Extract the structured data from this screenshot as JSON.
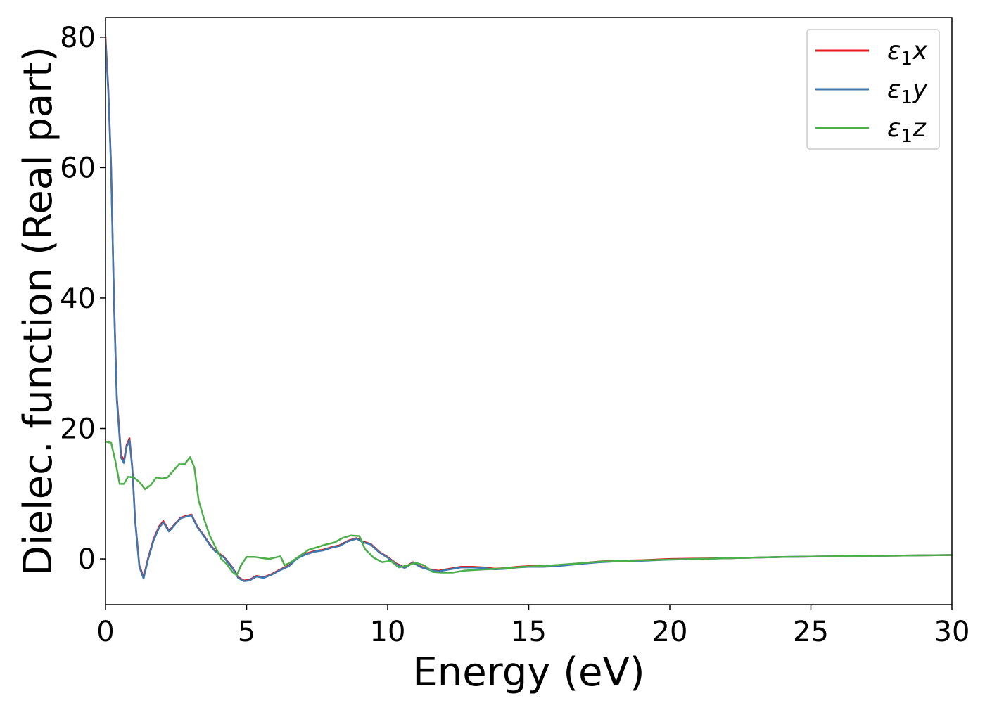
{
  "chart_data": {
    "type": "line",
    "title": "",
    "xlabel": "Energy (eV)",
    "ylabel": "Dielec. function (Real part)",
    "xlim": [
      0,
      30
    ],
    "ylim": [
      -7,
      83
    ],
    "xticks": [
      0,
      5,
      10,
      15,
      20,
      25,
      30
    ],
    "yticks": [
      0,
      20,
      40,
      60,
      80
    ],
    "grid": false,
    "legend_position": "top-right",
    "series": [
      {
        "name": "ε₁x",
        "legend_main": "ε",
        "legend_sub": "1",
        "legend_suffix": "x",
        "color": "#e41a1c",
        "points": [
          [
            0,
            80
          ],
          [
            0.1,
            72
          ],
          [
            0.2,
            60
          ],
          [
            0.3,
            40
          ],
          [
            0.4,
            25
          ],
          [
            0.55,
            16
          ],
          [
            0.65,
            15
          ],
          [
            0.75,
            17.5
          ],
          [
            0.85,
            18.5
          ],
          [
            0.95,
            14
          ],
          [
            1.05,
            6
          ],
          [
            1.2,
            -1
          ],
          [
            1.35,
            -2.8
          ],
          [
            1.5,
            0
          ],
          [
            1.7,
            3
          ],
          [
            1.9,
            5
          ],
          [
            2.05,
            5.8
          ],
          [
            2.25,
            4.3
          ],
          [
            2.45,
            5.3
          ],
          [
            2.65,
            6.3
          ],
          [
            2.85,
            6.6
          ],
          [
            3.05,
            6.8
          ],
          [
            3.25,
            5
          ],
          [
            3.5,
            3.5
          ],
          [
            3.7,
            2.2
          ],
          [
            3.9,
            1.2
          ],
          [
            4.2,
            0.3
          ],
          [
            4.5,
            -1.3
          ],
          [
            4.7,
            -2.8
          ],
          [
            4.9,
            -3.3
          ],
          [
            5.1,
            -3.2
          ],
          [
            5.35,
            -2.6
          ],
          [
            5.6,
            -2.8
          ],
          [
            5.9,
            -2.3
          ],
          [
            6.2,
            -1.6
          ],
          [
            6.5,
            -1
          ],
          [
            6.8,
            0.2
          ],
          [
            7.1,
            0.8
          ],
          [
            7.4,
            1.2
          ],
          [
            7.7,
            1.4
          ],
          [
            8.0,
            1.8
          ],
          [
            8.3,
            2.1
          ],
          [
            8.6,
            2.8
          ],
          [
            8.9,
            3.2
          ],
          [
            9.1,
            2.7
          ],
          [
            9.4,
            2.3
          ],
          [
            9.7,
            1.1
          ],
          [
            10.0,
            0.3
          ],
          [
            10.3,
            -0.7
          ],
          [
            10.6,
            -1.3
          ],
          [
            10.9,
            -0.5
          ],
          [
            11.2,
            -1.2
          ],
          [
            11.5,
            -1.6
          ],
          [
            11.8,
            -1.8
          ],
          [
            12.2,
            -1.5
          ],
          [
            12.6,
            -1.2
          ],
          [
            13.0,
            -1.2
          ],
          [
            13.4,
            -1.3
          ],
          [
            13.8,
            -1.5
          ],
          [
            14.2,
            -1.4
          ],
          [
            14.6,
            -1.2
          ],
          [
            15.0,
            -1.1
          ],
          [
            15.5,
            -1.1
          ],
          [
            16.0,
            -1.0
          ],
          [
            16.5,
            -0.8
          ],
          [
            17.0,
            -0.6
          ],
          [
            17.5,
            -0.4
          ],
          [
            18.0,
            -0.3
          ],
          [
            19.0,
            -0.2
          ],
          [
            20.0,
            0
          ],
          [
            22.0,
            0.1
          ],
          [
            24.0,
            0.3
          ],
          [
            26.0,
            0.4
          ],
          [
            28.0,
            0.5
          ],
          [
            30.0,
            0.6
          ]
        ]
      },
      {
        "name": "ε₁y",
        "legend_main": "ε",
        "legend_sub": "1",
        "legend_suffix": "y",
        "color": "#3d78b0",
        "points": [
          [
            0,
            79.5
          ],
          [
            0.1,
            71.5
          ],
          [
            0.2,
            59.5
          ],
          [
            0.3,
            39.5
          ],
          [
            0.4,
            24.5
          ],
          [
            0.55,
            15.5
          ],
          [
            0.65,
            14.7
          ],
          [
            0.75,
            17.2
          ],
          [
            0.85,
            18.2
          ],
          [
            0.95,
            13.8
          ],
          [
            1.05,
            5.8
          ],
          [
            1.2,
            -1.2
          ],
          [
            1.35,
            -3
          ],
          [
            1.5,
            -0.2
          ],
          [
            1.7,
            2.8
          ],
          [
            1.9,
            4.8
          ],
          [
            2.05,
            5.6
          ],
          [
            2.25,
            4.2
          ],
          [
            2.45,
            5.2
          ],
          [
            2.65,
            6.2
          ],
          [
            2.85,
            6.5
          ],
          [
            3.05,
            6.7
          ],
          [
            3.25,
            4.9
          ],
          [
            3.5,
            3.4
          ],
          [
            3.7,
            2.1
          ],
          [
            3.9,
            1.1
          ],
          [
            4.2,
            0.2
          ],
          [
            4.5,
            -1.4
          ],
          [
            4.7,
            -2.9
          ],
          [
            4.9,
            -3.4
          ],
          [
            5.1,
            -3.3
          ],
          [
            5.35,
            -2.7
          ],
          [
            5.6,
            -2.9
          ],
          [
            5.9,
            -2.4
          ],
          [
            6.2,
            -1.7
          ],
          [
            6.5,
            -1.1
          ],
          [
            6.8,
            0.1
          ],
          [
            7.1,
            0.7
          ],
          [
            7.4,
            1.1
          ],
          [
            7.7,
            1.3
          ],
          [
            8.0,
            1.7
          ],
          [
            8.3,
            2.0
          ],
          [
            8.6,
            2.7
          ],
          [
            8.9,
            3.1
          ],
          [
            9.1,
            2.6
          ],
          [
            9.4,
            2.2
          ],
          [
            9.7,
            1.0
          ],
          [
            10.0,
            0.2
          ],
          [
            10.3,
            -0.8
          ],
          [
            10.6,
            -1.4
          ],
          [
            10.9,
            -0.6
          ],
          [
            11.2,
            -1.3
          ],
          [
            11.5,
            -1.7
          ],
          [
            11.8,
            -1.9
          ],
          [
            12.2,
            -1.6
          ],
          [
            12.6,
            -1.3
          ],
          [
            13.0,
            -1.3
          ],
          [
            13.4,
            -1.4
          ],
          [
            13.8,
            -1.6
          ],
          [
            14.2,
            -1.5
          ],
          [
            14.6,
            -1.3
          ],
          [
            15.0,
            -1.2
          ],
          [
            15.5,
            -1.2
          ],
          [
            16.0,
            -1.1
          ],
          [
            16.5,
            -0.9
          ],
          [
            17.0,
            -0.7
          ],
          [
            17.5,
            -0.5
          ],
          [
            18.0,
            -0.4
          ],
          [
            19.0,
            -0.3
          ],
          [
            20.0,
            -0.1
          ],
          [
            22.0,
            0.1
          ],
          [
            24.0,
            0.3
          ],
          [
            26.0,
            0.4
          ],
          [
            28.0,
            0.5
          ],
          [
            30.0,
            0.6
          ]
        ]
      },
      {
        "name": "ε₁z",
        "legend_main": "ε",
        "legend_sub": "1",
        "legend_suffix": "z",
        "color": "#4daf4a",
        "points": [
          [
            0,
            18
          ],
          [
            0.2,
            17.8
          ],
          [
            0.35,
            15
          ],
          [
            0.5,
            11.5
          ],
          [
            0.65,
            11.5
          ],
          [
            0.8,
            12.6
          ],
          [
            1.0,
            12.5
          ],
          [
            1.2,
            11.8
          ],
          [
            1.4,
            10.7
          ],
          [
            1.6,
            11.3
          ],
          [
            1.8,
            12.5
          ],
          [
            2.0,
            12.3
          ],
          [
            2.2,
            12.5
          ],
          [
            2.4,
            13.5
          ],
          [
            2.6,
            14.5
          ],
          [
            2.8,
            14.5
          ],
          [
            3.0,
            15.6
          ],
          [
            3.15,
            14
          ],
          [
            3.3,
            9
          ],
          [
            3.5,
            6
          ],
          [
            3.7,
            3.5
          ],
          [
            3.9,
            1.8
          ],
          [
            4.1,
            0
          ],
          [
            4.3,
            -0.8
          ],
          [
            4.5,
            -2
          ],
          [
            4.65,
            -2.5
          ],
          [
            4.8,
            -1
          ],
          [
            5.0,
            0.3
          ],
          [
            5.3,
            0.3
          ],
          [
            5.6,
            0.1
          ],
          [
            5.8,
            0
          ],
          [
            6.0,
            0.2
          ],
          [
            6.2,
            0.4
          ],
          [
            6.35,
            -1
          ],
          [
            6.6,
            -0.4
          ],
          [
            6.9,
            0.5
          ],
          [
            7.2,
            1.4
          ],
          [
            7.5,
            1.8
          ],
          [
            7.8,
            2.2
          ],
          [
            8.1,
            2.5
          ],
          [
            8.4,
            3.2
          ],
          [
            8.7,
            3.6
          ],
          [
            9.0,
            3.5
          ],
          [
            9.2,
            1.5
          ],
          [
            9.5,
            0.2
          ],
          [
            9.8,
            -0.5
          ],
          [
            10.1,
            -0.3
          ],
          [
            10.4,
            -1.3
          ],
          [
            10.7,
            -1
          ],
          [
            11.0,
            -0.6
          ],
          [
            11.3,
            -1
          ],
          [
            11.6,
            -2
          ],
          [
            11.9,
            -2.1
          ],
          [
            12.3,
            -2.1
          ],
          [
            12.7,
            -1.8
          ],
          [
            13.1,
            -1.7
          ],
          [
            13.5,
            -1.6
          ],
          [
            13.9,
            -1.5
          ],
          [
            14.3,
            -1.4
          ],
          [
            14.8,
            -1.2
          ],
          [
            15.3,
            -1.1
          ],
          [
            15.8,
            -1.0
          ],
          [
            16.4,
            -0.8
          ],
          [
            17.0,
            -0.6
          ],
          [
            17.6,
            -0.4
          ],
          [
            18.4,
            -0.3
          ],
          [
            19.2,
            -0.2
          ],
          [
            20.0,
            -0.1
          ],
          [
            22.0,
            0.1
          ],
          [
            24.0,
            0.3
          ],
          [
            26.0,
            0.4
          ],
          [
            28.0,
            0.5
          ],
          [
            30.0,
            0.6
          ]
        ]
      }
    ]
  }
}
